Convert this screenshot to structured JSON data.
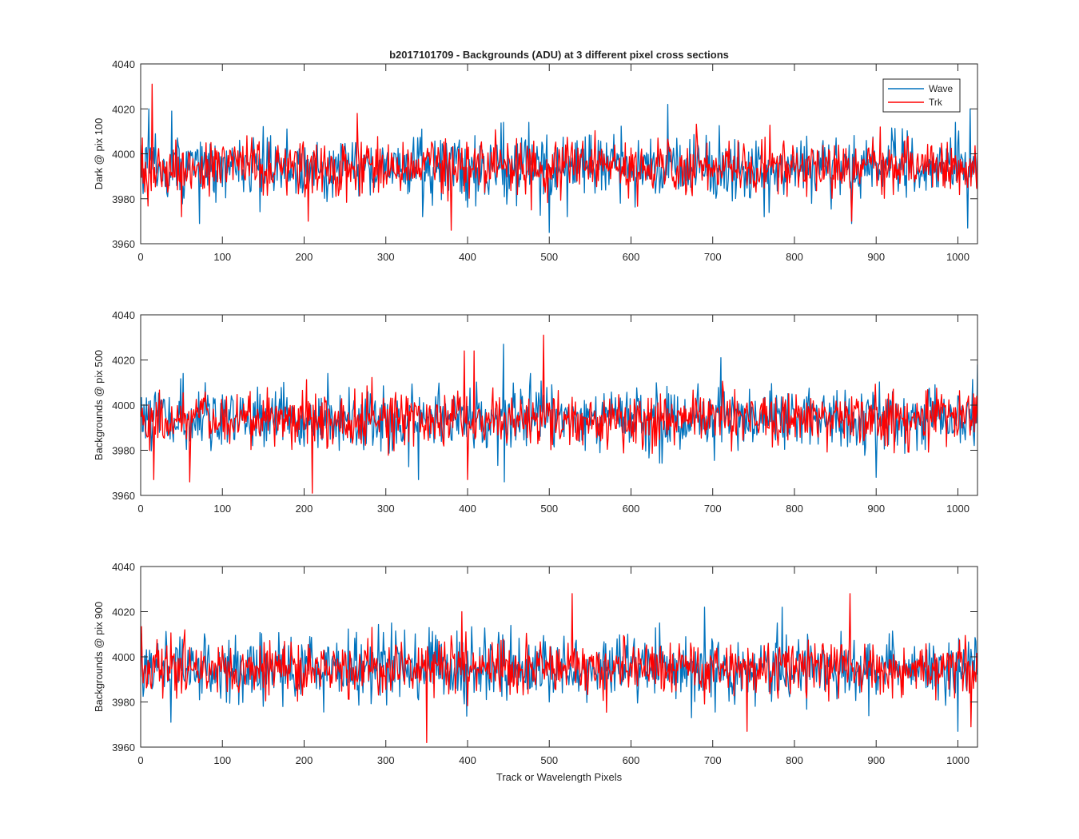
{
  "chart_data": [
    {
      "type": "line",
      "title": "b2017101709 - Backgrounds (ADU) at 3 different pixel cross sections",
      "xlabel": "",
      "ylabel": "Dark @ pix 100",
      "xlim": [
        0,
        1024
      ],
      "ylim": [
        3960,
        4040
      ],
      "xticks": [
        "0",
        "100",
        "200",
        "300",
        "400",
        "500",
        "600",
        "700",
        "800",
        "900",
        "1000"
      ],
      "yticks": [
        "3960",
        "3980",
        "4000",
        "4020",
        "4040"
      ],
      "grid": false,
      "legend": "top-right",
      "series": [
        {
          "name": "Wave",
          "color": "#0072BD",
          "mean": 3994,
          "spread": 7,
          "spikes": [
            [
              10,
              4020
            ],
            [
              38,
              4019
            ],
            [
              645,
              4022
            ],
            [
              1015,
              4020
            ],
            [
              500,
              3965
            ],
            [
              1012,
              3967
            ],
            [
              870,
              3969
            ],
            [
              72,
              3969
            ]
          ]
        },
        {
          "name": "Trk",
          "color": "#FF0000",
          "mean": 3994,
          "spread": 6,
          "spikes": [
            [
              14,
              4031
            ],
            [
              265,
              4018
            ],
            [
              380,
              3966
            ],
            [
              205,
              3970
            ],
            [
              870,
              3970
            ],
            [
              50,
              3972
            ]
          ]
        }
      ]
    },
    {
      "type": "line",
      "title": "",
      "xlabel": "",
      "ylabel": "Backgrounds @ pix 500",
      "xlim": [
        0,
        1024
      ],
      "ylim": [
        3960,
        4040
      ],
      "xticks": [
        "0",
        "100",
        "200",
        "300",
        "400",
        "500",
        "600",
        "700",
        "800",
        "900",
        "1000"
      ],
      "yticks": [
        "3960",
        "3980",
        "4000",
        "4020",
        "4040"
      ],
      "grid": false,
      "legend": "",
      "series": [
        {
          "name": "Wave",
          "color": "#0072BD",
          "mean": 3994,
          "spread": 7,
          "spikes": [
            [
              444,
              4027
            ],
            [
              1024,
              4018
            ],
            [
              710,
              4021
            ],
            [
              445,
              3966
            ],
            [
              340,
              3967
            ],
            [
              900,
              3968
            ]
          ]
        },
        {
          "name": "Trk",
          "color": "#FF0000",
          "mean": 3994,
          "spread": 6,
          "spikes": [
            [
              493,
              4031
            ],
            [
              396,
              4024
            ],
            [
              408,
              4024
            ],
            [
              210,
              3961
            ],
            [
              60,
              3966
            ],
            [
              16,
              3967
            ],
            [
              400,
              3967
            ]
          ]
        }
      ]
    },
    {
      "type": "line",
      "title": "",
      "xlabel": "Track or Wavelength Pixels",
      "ylabel": "Backgrounds @ pix 900",
      "xlim": [
        0,
        1024
      ],
      "ylim": [
        3960,
        4040
      ],
      "xticks": [
        "0",
        "100",
        "200",
        "300",
        "400",
        "500",
        "600",
        "700",
        "800",
        "900",
        "1000"
      ],
      "yticks": [
        "3960",
        "3980",
        "4000",
        "4020",
        "4040"
      ],
      "grid": false,
      "legend": "",
      "series": [
        {
          "name": "Wave",
          "color": "#0072BD",
          "mean": 3995,
          "spread": 7,
          "spikes": [
            [
              690,
              4022
            ],
            [
              785,
              4022
            ],
            [
              37,
              3971
            ],
            [
              1000,
              3967
            ]
          ]
        },
        {
          "name": "Trk",
          "color": "#FF0000",
          "mean": 3995,
          "spread": 6,
          "spikes": [
            [
              528,
              4028
            ],
            [
              868,
              4028
            ],
            [
              393,
              4020
            ],
            [
              350,
              3962
            ],
            [
              742,
              3967
            ],
            [
              1016,
              3969
            ]
          ]
        }
      ]
    }
  ]
}
